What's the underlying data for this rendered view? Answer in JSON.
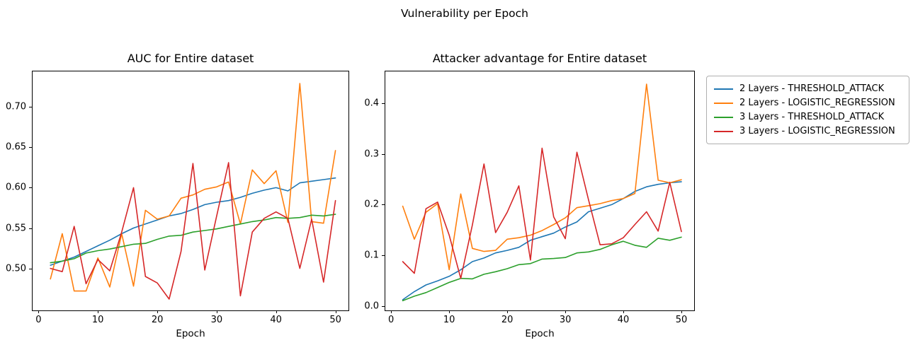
{
  "figure": {
    "suptitle": "Vulnerability per Epoch",
    "background": "#ffffff",
    "text_color": "#000000"
  },
  "legend": {
    "position": "top-right",
    "entries": [
      {
        "label": "2 Layers - THRESHOLD_ATTACK",
        "color": "#1f77b4"
      },
      {
        "label": "2 Layers - LOGISTIC_REGRESSION",
        "color": "#ff7f0e"
      },
      {
        "label": "3 Layers - THRESHOLD_ATTACK",
        "color": "#2ca02c"
      },
      {
        "label": "3 Layers - LOGISTIC_REGRESSION",
        "color": "#d62728"
      }
    ]
  },
  "chart_data": [
    {
      "type": "line",
      "title": "AUC for Entire dataset",
      "xlabel": "Epoch",
      "grid": false,
      "x": [
        2,
        4,
        6,
        8,
        10,
        12,
        14,
        16,
        18,
        20,
        22,
        24,
        26,
        28,
        30,
        32,
        34,
        36,
        38,
        40,
        42,
        44,
        46,
        48,
        50
      ],
      "xlim": [
        -1,
        52.2
      ],
      "ylim": [
        0.448,
        0.744
      ],
      "xticks": [
        0,
        10,
        20,
        30,
        40,
        50
      ],
      "xtick_labels": [
        "0",
        "10",
        "20",
        "30",
        "40",
        "50"
      ],
      "yticks": [
        0.5,
        0.55,
        0.6,
        0.65,
        0.7
      ],
      "ytick_labels": [
        "0.50",
        "0.55",
        "0.60",
        "0.65",
        "0.70"
      ],
      "series": [
        {
          "name": "2 Layers - THRESHOLD_ATTACK",
          "color": "#1f77b4",
          "values": [
            0.504,
            0.509,
            0.514,
            0.521,
            0.528,
            0.535,
            0.543,
            0.55,
            0.555,
            0.56,
            0.565,
            0.568,
            0.573,
            0.579,
            0.582,
            0.584,
            0.588,
            0.593,
            0.597,
            0.6,
            0.596,
            0.606,
            0.608,
            0.61,
            0.612
          ]
        },
        {
          "name": "2 Layers - LOGISTIC_REGRESSION",
          "color": "#ff7f0e",
          "values": [
            0.487,
            0.543,
            0.472,
            0.472,
            0.513,
            0.477,
            0.543,
            0.478,
            0.572,
            0.561,
            0.565,
            0.587,
            0.591,
            0.598,
            0.601,
            0.607,
            0.555,
            0.622,
            0.605,
            0.621,
            0.557,
            0.729,
            0.558,
            0.556,
            0.646
          ]
        },
        {
          "name": "3 Layers - THRESHOLD_ATTACK",
          "color": "#2ca02c",
          "values": [
            0.507,
            0.509,
            0.512,
            0.519,
            0.522,
            0.524,
            0.527,
            0.53,
            0.531,
            0.536,
            0.54,
            0.541,
            0.545,
            0.547,
            0.549,
            0.552,
            0.555,
            0.558,
            0.56,
            0.563,
            0.562,
            0.563,
            0.566,
            0.565,
            0.567
          ]
        },
        {
          "name": "3 Layers - LOGISTIC_REGRESSION",
          "color": "#d62728",
          "values": [
            0.5,
            0.496,
            0.552,
            0.481,
            0.511,
            0.497,
            0.545,
            0.6,
            0.49,
            0.482,
            0.462,
            0.521,
            0.63,
            0.498,
            0.565,
            0.631,
            0.466,
            0.545,
            0.562,
            0.57,
            0.562,
            0.5,
            0.561,
            0.483,
            0.584
          ]
        }
      ]
    },
    {
      "type": "line",
      "title": "Attacker advantage for Entire dataset",
      "xlabel": "Epoch",
      "grid": false,
      "x": [
        2,
        4,
        6,
        8,
        10,
        12,
        14,
        16,
        18,
        20,
        22,
        24,
        26,
        28,
        30,
        32,
        34,
        36,
        38,
        40,
        42,
        44,
        46,
        48,
        50
      ],
      "xlim": [
        -1,
        52.2
      ],
      "ylim": [
        -0.008,
        0.462
      ],
      "xticks": [
        0,
        10,
        20,
        30,
        40,
        50
      ],
      "xtick_labels": [
        "0",
        "10",
        "20",
        "30",
        "40",
        "50"
      ],
      "yticks": [
        0.0,
        0.1,
        0.2,
        0.3,
        0.4
      ],
      "ytick_labels": [
        "0.0",
        "0.1",
        "0.2",
        "0.3",
        "0.4"
      ],
      "series": [
        {
          "name": "2 Layers - THRESHOLD_ATTACK",
          "color": "#1f77b4",
          "values": [
            0.013,
            0.029,
            0.042,
            0.05,
            0.059,
            0.072,
            0.088,
            0.095,
            0.105,
            0.11,
            0.116,
            0.13,
            0.137,
            0.144,
            0.156,
            0.166,
            0.186,
            0.193,
            0.2,
            0.212,
            0.226,
            0.235,
            0.24,
            0.243,
            0.245
          ]
        },
        {
          "name": "2 Layers - LOGISTIC_REGRESSION",
          "color": "#ff7f0e",
          "values": [
            0.197,
            0.132,
            0.185,
            0.202,
            0.072,
            0.221,
            0.114,
            0.108,
            0.11,
            0.132,
            0.135,
            0.14,
            0.149,
            0.161,
            0.174,
            0.194,
            0.198,
            0.202,
            0.208,
            0.212,
            0.222,
            0.437,
            0.248,
            0.243,
            0.249
          ]
        },
        {
          "name": "3 Layers - THRESHOLD_ATTACK",
          "color": "#2ca02c",
          "values": [
            0.011,
            0.02,
            0.027,
            0.037,
            0.047,
            0.055,
            0.054,
            0.063,
            0.068,
            0.074,
            0.082,
            0.084,
            0.093,
            0.094,
            0.096,
            0.105,
            0.107,
            0.112,
            0.121,
            0.128,
            0.12,
            0.116,
            0.134,
            0.13,
            0.136
          ]
        },
        {
          "name": "3 Layers - LOGISTIC_REGRESSION",
          "color": "#d62728",
          "values": [
            0.088,
            0.065,
            0.192,
            0.205,
            0.14,
            0.055,
            0.16,
            0.28,
            0.145,
            0.185,
            0.237,
            0.091,
            0.311,
            0.176,
            0.133,
            0.303,
            0.21,
            0.121,
            0.123,
            0.135,
            0.161,
            0.186,
            0.148,
            0.244,
            0.147
          ]
        }
      ]
    }
  ]
}
